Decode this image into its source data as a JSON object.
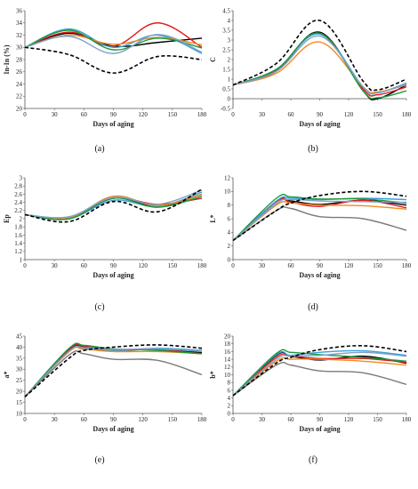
{
  "figure": {
    "captions": [
      "(a)",
      "(b)",
      "(c)",
      "(d)",
      "(e)",
      "(f)"
    ]
  },
  "series_colors": [
    "#000000",
    "#e31a1c",
    "#3aa0d8",
    "#f08a24",
    "#1a9a3c",
    "#7fa0c8",
    "#7a7a7a"
  ],
  "chart_data": [
    {
      "type": "line",
      "caption": "(a)",
      "ylabel": "In-In (%)",
      "xlabel": "Days of aging",
      "xlim": [
        0,
        180
      ],
      "xticks": [
        0,
        30,
        60,
        90,
        120,
        150,
        180
      ],
      "ylim": [
        20,
        36
      ],
      "yticks": [
        20,
        22,
        24,
        26,
        28,
        30,
        32,
        34,
        36
      ],
      "x": [
        0,
        45,
        90,
        135,
        180
      ],
      "series": [
        {
          "style": "solid",
          "color": "#000000",
          "values": [
            30,
            32.3,
            30.2,
            30.8,
            31.5
          ]
        },
        {
          "style": "solid",
          "color": "#e31a1c",
          "values": [
            30,
            32.5,
            30.2,
            34.0,
            30.0
          ]
        },
        {
          "style": "solid",
          "color": "#3aa0d8",
          "values": [
            30,
            33.0,
            30.0,
            32.0,
            29.0
          ]
        },
        {
          "style": "solid",
          "color": "#f08a24",
          "values": [
            30,
            32.0,
            30.5,
            31.6,
            30.4
          ]
        },
        {
          "style": "solid",
          "color": "#1a9a3c",
          "values": [
            30,
            32.8,
            29.6,
            31.5,
            29.9
          ]
        },
        {
          "style": "solid",
          "color": "#7fa0c8",
          "values": [
            30,
            31.8,
            29.0,
            32.1,
            29.2
          ]
        },
        {
          "style": "dashed",
          "color": "#000000",
          "values": [
            30,
            28.8,
            25.8,
            28.5,
            28.0
          ]
        }
      ]
    },
    {
      "type": "line",
      "caption": "(b)",
      "ylabel": "C",
      "xlabel": "Days of aging",
      "xlim": [
        0,
        180
      ],
      "xticks": [
        0,
        30,
        60,
        90,
        120,
        150,
        180
      ],
      "ylim": [
        -0.5,
        4.5
      ],
      "yticks": [
        -0.5,
        0,
        0.5,
        1,
        1.5,
        2,
        2.5,
        3,
        3.5,
        4,
        4.5
      ],
      "x": [
        0,
        45,
        90,
        135,
        150,
        180
      ],
      "series": [
        {
          "style": "solid",
          "color": "#000000",
          "values": [
            0.7,
            1.4,
            3.4,
            0.4,
            0.0,
            0.7
          ]
        },
        {
          "style": "solid",
          "color": "#e31a1c",
          "values": [
            0.7,
            1.45,
            3.35,
            0.5,
            0.2,
            0.6
          ]
        },
        {
          "style": "solid",
          "color": "#3aa0d8",
          "values": [
            0.7,
            1.5,
            3.3,
            0.6,
            0.3,
            0.8
          ]
        },
        {
          "style": "solid",
          "color": "#f08a24",
          "values": [
            0.7,
            1.3,
            2.9,
            0.6,
            0.35,
            0.7
          ]
        },
        {
          "style": "solid",
          "color": "#1a9a3c",
          "values": [
            0.7,
            1.5,
            3.35,
            0.4,
            0.05,
            0.4
          ]
        },
        {
          "style": "solid",
          "color": "#7fa0c8",
          "values": [
            0.7,
            1.4,
            3.2,
            0.6,
            0.3,
            0.75
          ]
        },
        {
          "style": "dashed",
          "color": "#000000",
          "values": [
            0.7,
            1.8,
            4.0,
            0.9,
            0.45,
            1.0
          ]
        }
      ]
    },
    {
      "type": "line",
      "caption": "(c)",
      "ylabel": "Ep",
      "xlabel": "Days of aging",
      "xlim": [
        0,
        180
      ],
      "xticks": [
        0,
        30,
        60,
        90,
        120,
        150,
        180
      ],
      "ylim": [
        1.0,
        3.0
      ],
      "yticks": [
        1.0,
        1.2,
        1.4,
        1.6,
        1.8,
        2.0,
        2.2,
        2.4,
        2.6,
        2.8,
        3.0
      ],
      "x": [
        0,
        45,
        90,
        135,
        180
      ],
      "series": [
        {
          "style": "solid",
          "color": "#000000",
          "values": [
            2.1,
            2.0,
            2.5,
            2.3,
            2.6
          ]
        },
        {
          "style": "solid",
          "color": "#e31a1c",
          "values": [
            2.1,
            2.0,
            2.5,
            2.35,
            2.5
          ]
        },
        {
          "style": "solid",
          "color": "#3aa0d8",
          "values": [
            2.1,
            2.0,
            2.45,
            2.3,
            2.65
          ]
        },
        {
          "style": "solid",
          "color": "#f08a24",
          "values": [
            2.1,
            2.02,
            2.55,
            2.32,
            2.6
          ]
        },
        {
          "style": "solid",
          "color": "#1a9a3c",
          "values": [
            2.1,
            2.0,
            2.5,
            2.28,
            2.55
          ]
        },
        {
          "style": "solid",
          "color": "#7fa0c8",
          "values": [
            2.1,
            2.05,
            2.52,
            2.35,
            2.7
          ]
        },
        {
          "style": "dashed",
          "color": "#000000",
          "values": [
            2.1,
            1.93,
            2.42,
            2.17,
            2.72
          ]
        }
      ]
    },
    {
      "type": "line",
      "caption": "(d)",
      "ylabel": "L*",
      "xlabel": "Days of aging",
      "xlim": [
        0,
        180
      ],
      "xticks": [
        0,
        30,
        60,
        90,
        120,
        150,
        180
      ],
      "ylim": [
        0,
        12
      ],
      "yticks": [
        0,
        2,
        4,
        6,
        8,
        10,
        12
      ],
      "x": [
        0,
        45,
        60,
        90,
        135,
        180
      ],
      "series": [
        {
          "style": "solid",
          "color": "#000000",
          "values": [
            2.8,
            8.5,
            8.6,
            8.1,
            8.7,
            8.0
          ]
        },
        {
          "style": "solid",
          "color": "#e31a1c",
          "values": [
            2.8,
            8.5,
            8.4,
            7.8,
            8.7,
            7.6
          ]
        },
        {
          "style": "solid",
          "color": "#3aa0d8",
          "values": [
            2.8,
            8.6,
            9.0,
            8.8,
            9.0,
            8.8
          ]
        },
        {
          "style": "solid",
          "color": "#f08a24",
          "values": [
            2.8,
            8.0,
            8.3,
            8.0,
            7.9,
            7.4
          ]
        },
        {
          "style": "solid",
          "color": "#1a9a3c",
          "values": [
            2.8,
            9.0,
            9.2,
            8.9,
            8.9,
            8.3
          ]
        },
        {
          "style": "solid",
          "color": "#7fa0c8",
          "values": [
            2.8,
            8.2,
            8.8,
            8.6,
            8.5,
            8.4
          ]
        },
        {
          "style": "solid",
          "color": "#7a7a7a",
          "values": [
            2.8,
            7.2,
            7.5,
            6.3,
            6.0,
            4.3
          ]
        },
        {
          "style": "dashed",
          "color": "#000000",
          "values": [
            2.8,
            7.2,
            8.3,
            9.4,
            10.0,
            9.3
          ]
        }
      ]
    },
    {
      "type": "line",
      "caption": "(e)",
      "ylabel": "a*",
      "xlabel": "Days of aging",
      "xlim": [
        0,
        180
      ],
      "xticks": [
        0,
        30,
        60,
        90,
        120,
        150,
        180
      ],
      "ylim": [
        10,
        45
      ],
      "yticks": [
        10,
        15,
        20,
        25,
        30,
        35,
        40,
        45
      ],
      "x": [
        0,
        45,
        60,
        90,
        135,
        180
      ],
      "series": [
        {
          "style": "solid",
          "color": "#000000",
          "values": [
            17.5,
            38.5,
            40.0,
            38.5,
            39.0,
            37.5
          ]
        },
        {
          "style": "solid",
          "color": "#e31a1c",
          "values": [
            17.5,
            39.0,
            40.5,
            38.8,
            38.8,
            37.0
          ]
        },
        {
          "style": "solid",
          "color": "#3aa0d8",
          "values": [
            17.5,
            38.0,
            39.5,
            38.5,
            39.5,
            38.5
          ]
        },
        {
          "style": "solid",
          "color": "#f08a24",
          "values": [
            17.5,
            38.0,
            39.0,
            38.0,
            38.0,
            37.0
          ]
        },
        {
          "style": "solid",
          "color": "#1a9a3c",
          "values": [
            17.5,
            39.5,
            40.8,
            39.2,
            38.5,
            37.0
          ]
        },
        {
          "style": "solid",
          "color": "#7fa0c8",
          "values": [
            17.5,
            38.2,
            39.8,
            39.0,
            39.2,
            38.0
          ]
        },
        {
          "style": "solid",
          "color": "#7a7a7a",
          "values": [
            17.5,
            36.5,
            37.0,
            34.5,
            34.0,
            27.5
          ]
        },
        {
          "style": "dashed",
          "color": "#000000",
          "values": [
            17.5,
            35.0,
            38.5,
            40.0,
            41.0,
            39.5
          ]
        }
      ]
    },
    {
      "type": "line",
      "caption": "(f)",
      "ylabel": "b*",
      "xlabel": "Days of aging",
      "xlim": [
        0,
        180
      ],
      "xticks": [
        0,
        30,
        60,
        90,
        120,
        150,
        180
      ],
      "ylim": [
        0,
        20
      ],
      "yticks": [
        0,
        2,
        4,
        6,
        8,
        10,
        12,
        14,
        16,
        18,
        20
      ],
      "x": [
        0,
        45,
        60,
        90,
        135,
        180
      ],
      "series": [
        {
          "style": "solid",
          "color": "#000000",
          "values": [
            4.6,
            15.0,
            14.8,
            13.8,
            14.8,
            13.0
          ]
        },
        {
          "style": "solid",
          "color": "#e31a1c",
          "values": [
            4.6,
            14.5,
            14.8,
            14.2,
            14.2,
            13.2
          ]
        },
        {
          "style": "solid",
          "color": "#3aa0d8",
          "values": [
            4.6,
            15.2,
            15.0,
            15.8,
            16.2,
            15.0
          ]
        },
        {
          "style": "solid",
          "color": "#f08a24",
          "values": [
            4.6,
            13.5,
            14.0,
            14.0,
            13.5,
            12.5
          ]
        },
        {
          "style": "solid",
          "color": "#1a9a3c",
          "values": [
            4.6,
            15.5,
            15.8,
            15.2,
            14.5,
            13.5
          ]
        },
        {
          "style": "solid",
          "color": "#7fa0c8",
          "values": [
            4.6,
            14.0,
            14.8,
            15.0,
            15.8,
            14.8
          ]
        },
        {
          "style": "solid",
          "color": "#7a7a7a",
          "values": [
            4.6,
            12.5,
            12.5,
            11.0,
            10.5,
            7.5
          ]
        },
        {
          "style": "dashed",
          "color": "#000000",
          "values": [
            4.6,
            13.0,
            14.5,
            16.5,
            17.5,
            16.0
          ]
        }
      ]
    }
  ]
}
